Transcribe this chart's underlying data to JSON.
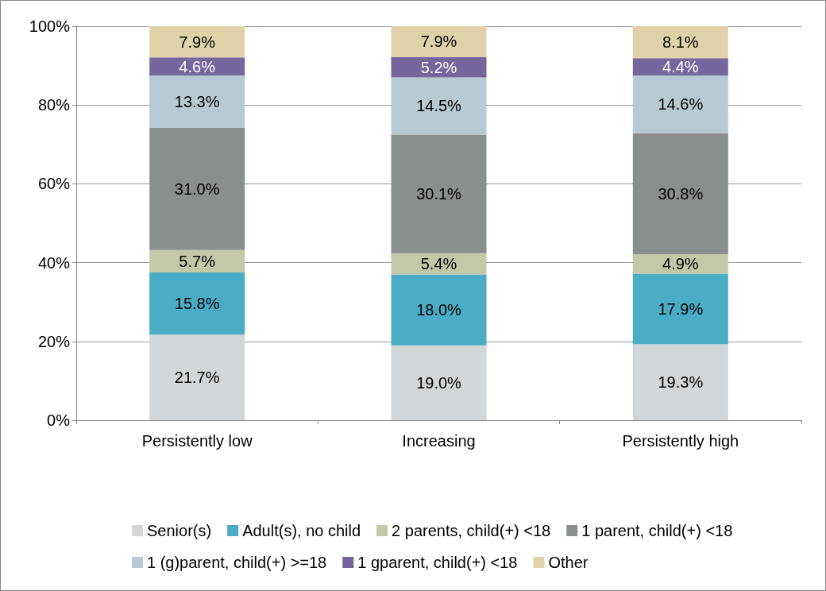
{
  "chart_data": {
    "type": "bar",
    "stacked": true,
    "categories": [
      "Persistently low",
      "Increasing",
      "Persistently high"
    ],
    "ylim": [
      0,
      100
    ],
    "yticks": [
      {
        "value": 0,
        "label": "0%"
      },
      {
        "value": 20,
        "label": "20%"
      },
      {
        "value": 40,
        "label": "40%"
      },
      {
        "value": 60,
        "label": "60%"
      },
      {
        "value": 80,
        "label": "80%"
      },
      {
        "value": 100,
        "label": "100%"
      }
    ],
    "grid": "y",
    "legend": "bottom",
    "series": [
      {
        "name": "Senior(s)",
        "color": "#d3d6d8",
        "values": [
          21.7,
          19.0,
          19.3
        ],
        "value_labels": [
          "21.7%",
          "19.0%",
          "19.3%"
        ]
      },
      {
        "name": "Adult(s), no child",
        "color": "#4bacc6",
        "values": [
          15.8,
          18.0,
          17.9
        ],
        "value_labels": [
          "15.8%",
          "18.0%",
          "17.9%"
        ]
      },
      {
        "name": "2 parents, child(+) <18",
        "color": "#c4c8a8",
        "values": [
          5.7,
          5.4,
          4.9
        ],
        "value_labels": [
          "5.7%",
          "5.4%",
          "4.9%"
        ]
      },
      {
        "name": "1 parent, child(+) <18",
        "color": "#8a8e8f",
        "values": [
          31.0,
          30.1,
          30.8
        ],
        "value_labels": [
          "31.0%",
          "30.1%",
          "30.8%"
        ]
      },
      {
        "name": "1 (g)parent, child(+) >=18",
        "color": "#b7c9d3",
        "values": [
          13.3,
          14.5,
          14.6
        ],
        "value_labels": [
          "13.3%",
          "14.5%",
          "14.6%"
        ]
      },
      {
        "name": "1 gparent, child(+) <18",
        "color": "#76669e",
        "values": [
          4.6,
          5.2,
          4.4
        ],
        "value_labels": [
          "4.6%",
          "5.2%",
          "4.4%"
        ]
      },
      {
        "name": "Other",
        "color": "#e0d2a8",
        "values": [
          7.9,
          7.9,
          8.1
        ],
        "value_labels": [
          "7.9%",
          "7.9%",
          "8.1%"
        ]
      }
    ]
  }
}
